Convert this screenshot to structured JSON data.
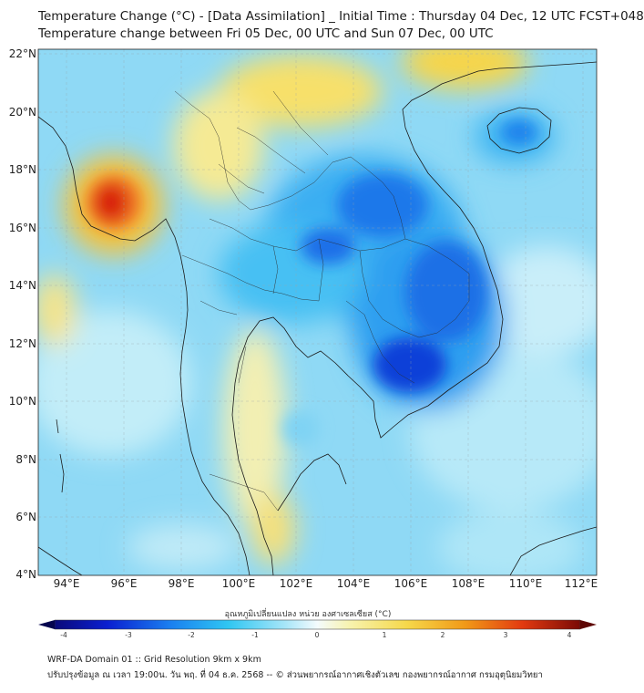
{
  "header": {
    "title_line1": "Temperature Change (°C) - [Data Assimilation] _ Initial Time : Thursday 04 Dec, 12 UTC FCST+048",
    "title_line2": "Temperature change between Fri 05 Dec, 00 UTC and Sun 07 Dec, 00 UTC"
  },
  "map": {
    "lat_labels": [
      "22°N",
      "20°N",
      "18°N",
      "16°N",
      "14°N",
      "12°N",
      "10°N",
      "8°N",
      "6°N",
      "4°N"
    ],
    "lon_labels": [
      "94°E",
      "96°E",
      "98°E",
      "100°E",
      "102°E",
      "104°E",
      "106°E",
      "108°E",
      "110°E",
      "112°E"
    ]
  },
  "colorbar": {
    "title": "อุณหภูมิเปลี่ยนแปลง หน่วย องศาเซลเซียส (°C)",
    "ticks": [
      "-4",
      "-3",
      "-2",
      "-1",
      "0",
      "1",
      "2",
      "3",
      "4"
    ]
  },
  "footer": {
    "line1": "WRF-DA Domain 01 :: Grid Resolution 9km x 9km",
    "line2": "ปรับปรุงข้อมูล ณ เวลา 19:00น. วัน พฤ. ที่ 04 ธ.ค. 2568 -- © ส่วนพยากรณ์อากาศเชิงตัวเลข กองพยากรณ์อากาศ กรมอุตุนิยมวิทยา"
  },
  "colors": {
    "cold_deep": "#0a3fd6",
    "cold": "#1f8bf0",
    "cool": "#2fc6f2",
    "light": "#a9e6f8",
    "neutral": "#e8f6fb",
    "warm_light": "#f5f0a8",
    "warm": "#f6c72e",
    "hot": "#e8400f",
    "hottest": "#d31508"
  }
}
